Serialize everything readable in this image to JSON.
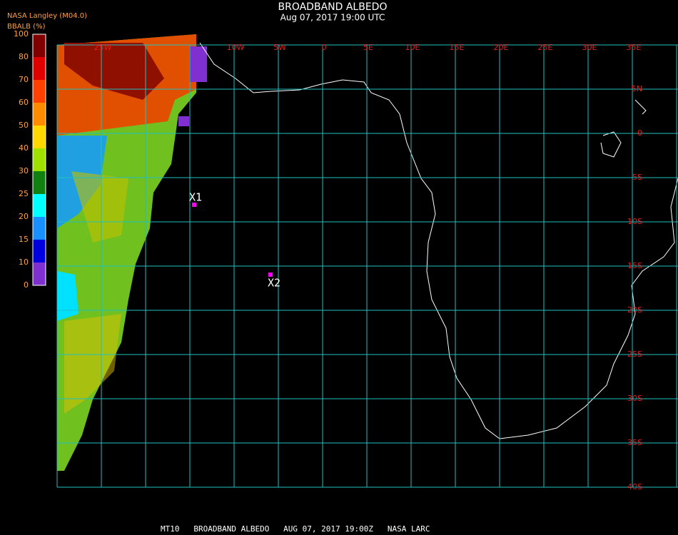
{
  "header": {
    "title": "BROADBAND ALBEDO",
    "subtitle": "Aug 07, 2017 19:00 UTC",
    "source": "NASA Langley (M04.0)",
    "variable": "BBALB (%)"
  },
  "colorbar": {
    "labels": [
      "100",
      "80",
      "70",
      "60",
      "50",
      "40",
      "30",
      "25",
      "20",
      "15",
      "10",
      "0"
    ],
    "colors": [
      "#800000",
      "#e00000",
      "#ff4000",
      "#ff8c00",
      "#ffd800",
      "#a0e000",
      "#108010",
      "#00ffff",
      "#1890ff",
      "#0000e0",
      "#8030d0"
    ]
  },
  "grid": {
    "longitudes": [
      "25W",
      "10W",
      "5W",
      "0",
      "5E",
      "10E",
      "15E",
      "20E",
      "25E",
      "30E",
      "35E"
    ],
    "latitudes": [
      "5N",
      "0",
      "5S",
      "10S",
      "15S",
      "20S",
      "25S",
      "30S",
      "35S",
      "40S"
    ]
  },
  "markers": [
    {
      "label": "X1"
    },
    {
      "label": "X2"
    }
  ],
  "footer": {
    "text": "MT10   BROADBAND ALBEDO   AUG 07, 2017 19:00Z   NASA LARC"
  }
}
